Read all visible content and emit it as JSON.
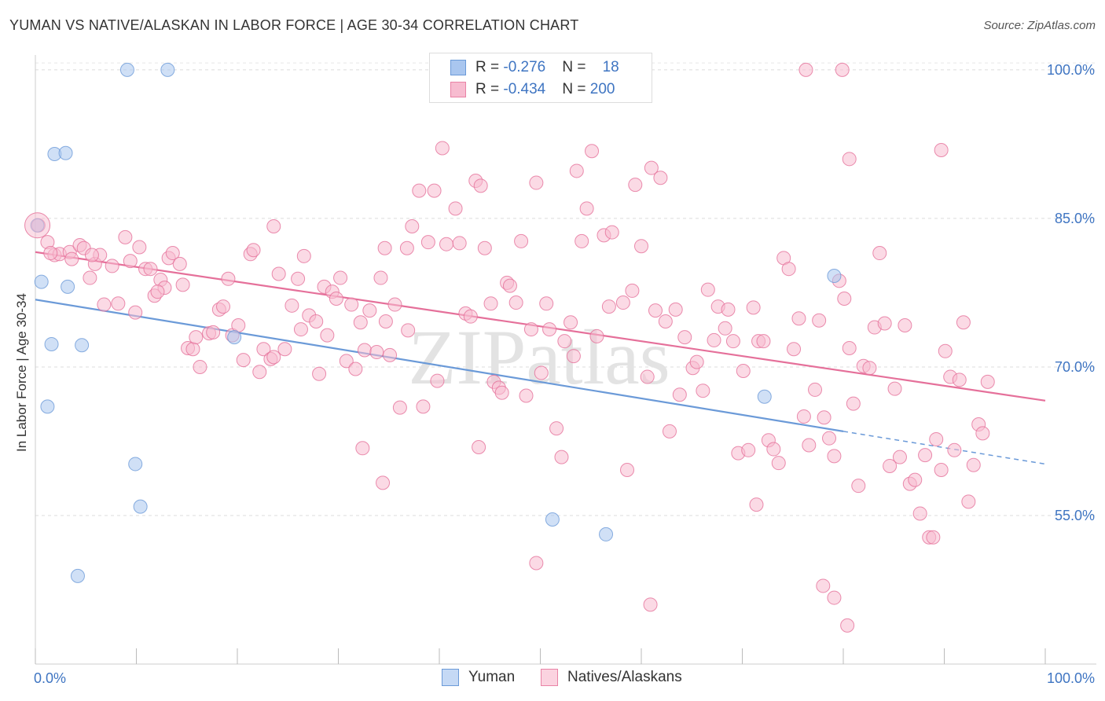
{
  "title": "YUMAN VS NATIVE/ALASKAN IN LABOR FORCE | AGE 30-34 CORRELATION CHART",
  "source": "Source: ZipAtlas.com",
  "watermark": "ZIPatlas",
  "legend": {
    "rows": [
      {
        "r_label": "R = ",
        "r_value": "-0.276",
        "n_label": "N = ",
        "n_value": "18",
        "color": "#a9c6ef",
        "border": "#6b9ad8"
      },
      {
        "r_label": "R = ",
        "r_value": "-0.434",
        "n_label": "N = ",
        "n_value": "200",
        "color": "#f7bcd0",
        "border": "#e983a6"
      }
    ]
  },
  "bottom_legend": [
    {
      "label": "Yuman",
      "color": "#c5d9f5",
      "border": "#6b9ad8"
    },
    {
      "label": "Natives/Alaskans",
      "color": "#fbd3e0",
      "border": "#e983a6"
    }
  ],
  "chart_data": {
    "type": "scatter",
    "title": "YUMAN VS NATIVE/ALASKAN IN LABOR FORCE | AGE 30-34 CORRELATION CHART",
    "xlabel": "",
    "ylabel": "In Labor Force | Age 30-34",
    "xlim": [
      0,
      100
    ],
    "ylim": [
      40,
      101.5
    ],
    "x_tick_labels": [
      "0.0%",
      "100.0%"
    ],
    "y_ticks": [
      55,
      70,
      85,
      100
    ],
    "y_tick_labels": [
      "55.0%",
      "70.0%",
      "85.0%",
      "100.0%"
    ],
    "grid": true,
    "series": [
      {
        "name": "Yuman",
        "color": "#6b9ad8",
        "fill": "#a9c6ef",
        "trend": {
          "x0": 0,
          "y0": 76.8,
          "x1": 80,
          "y1": 63.5,
          "dash_to": 100,
          "dash_y": 60.2
        },
        "points": [
          [
            9.1,
            100
          ],
          [
            13.1,
            100
          ],
          [
            1.9,
            91.5
          ],
          [
            3.0,
            91.6
          ],
          [
            0.2,
            84.3
          ],
          [
            0.6,
            78.6
          ],
          [
            3.2,
            78.1
          ],
          [
            1.6,
            72.3
          ],
          [
            4.6,
            72.2
          ],
          [
            1.2,
            66.0
          ],
          [
            9.9,
            60.2
          ],
          [
            10.4,
            55.9
          ],
          [
            4.2,
            48.9
          ],
          [
            19.7,
            73.0
          ],
          [
            51.2,
            54.6
          ],
          [
            56.5,
            53.1
          ],
          [
            72.2,
            67.0
          ],
          [
            79.1,
            79.2
          ]
        ]
      },
      {
        "name": "Natives/Alaskans",
        "color": "#e5709a",
        "fill": "#f7bcd0",
        "trend": {
          "x0": 0,
          "y0": 81.6,
          "x1": 100,
          "y1": 66.6
        },
        "points": [
          [
            0.3,
            84.3
          ],
          [
            1.2,
            82.6
          ],
          [
            1.9,
            81.3
          ],
          [
            2.4,
            81.4
          ],
          [
            3.4,
            81.6
          ],
          [
            3.6,
            80.9
          ],
          [
            4.4,
            82.3
          ],
          [
            4.8,
            82.0
          ],
          [
            5.4,
            79.0
          ],
          [
            5.9,
            80.4
          ],
          [
            6.4,
            81.3
          ],
          [
            6.8,
            76.3
          ],
          [
            7.6,
            80.2
          ],
          [
            8.2,
            76.4
          ],
          [
            8.9,
            83.1
          ],
          [
            9.4,
            80.7
          ],
          [
            9.9,
            75.5
          ],
          [
            10.3,
            82.1
          ],
          [
            10.9,
            79.9
          ],
          [
            11.4,
            79.9
          ],
          [
            11.8,
            77.2
          ],
          [
            12.4,
            78.8
          ],
          [
            12.8,
            78.0
          ],
          [
            13.2,
            81.0
          ],
          [
            13.6,
            81.5
          ],
          [
            14.3,
            80.4
          ],
          [
            14.6,
            78.3
          ],
          [
            15.1,
            71.9
          ],
          [
            15.6,
            71.8
          ],
          [
            16.3,
            70.0
          ],
          [
            17.2,
            73.4
          ],
          [
            17.6,
            73.5
          ],
          [
            18.2,
            75.8
          ],
          [
            18.6,
            76.1
          ],
          [
            19.1,
            78.9
          ],
          [
            19.5,
            73.2
          ],
          [
            20.1,
            74.2
          ],
          [
            20.6,
            70.7
          ],
          [
            21.3,
            81.4
          ],
          [
            21.6,
            81.8
          ],
          [
            22.2,
            69.5
          ],
          [
            22.6,
            71.8
          ],
          [
            23.3,
            70.8
          ],
          [
            23.6,
            84.2
          ],
          [
            24.1,
            79.4
          ],
          [
            24.7,
            71.8
          ],
          [
            25.4,
            76.2
          ],
          [
            26.0,
            78.9
          ],
          [
            26.3,
            73.8
          ],
          [
            26.6,
            81.2
          ],
          [
            27.1,
            75.2
          ],
          [
            27.8,
            74.6
          ],
          [
            28.1,
            69.3
          ],
          [
            28.6,
            78.1
          ],
          [
            28.9,
            73.2
          ],
          [
            29.4,
            77.6
          ],
          [
            29.8,
            76.9
          ],
          [
            30.2,
            79.0
          ],
          [
            30.8,
            70.6
          ],
          [
            31.3,
            76.3
          ],
          [
            31.7,
            69.8
          ],
          [
            32.2,
            74.5
          ],
          [
            32.6,
            71.7
          ],
          [
            33.1,
            75.7
          ],
          [
            33.8,
            71.5
          ],
          [
            34.2,
            79.0
          ],
          [
            34.7,
            74.6
          ],
          [
            35.1,
            71.2
          ],
          [
            35.6,
            76.3
          ],
          [
            36.1,
            65.9
          ],
          [
            36.8,
            82.0
          ],
          [
            37.3,
            84.2
          ],
          [
            38.0,
            87.8
          ],
          [
            38.4,
            66.0
          ],
          [
            38.9,
            82.6
          ],
          [
            39.5,
            87.8
          ],
          [
            39.8,
            68.6
          ],
          [
            40.3,
            92.1
          ],
          [
            40.7,
            82.4
          ],
          [
            41.6,
            86.0
          ],
          [
            42.0,
            82.5
          ],
          [
            42.6,
            75.4
          ],
          [
            43.1,
            75.1
          ],
          [
            43.6,
            88.8
          ],
          [
            44.1,
            88.3
          ],
          [
            44.5,
            82.0
          ],
          [
            45.1,
            76.4
          ],
          [
            45.4,
            68.5
          ],
          [
            45.9,
            67.9
          ],
          [
            46.2,
            67.4
          ],
          [
            46.7,
            78.5
          ],
          [
            47.0,
            78.2
          ],
          [
            47.6,
            76.5
          ],
          [
            48.1,
            82.7
          ],
          [
            48.6,
            67.1
          ],
          [
            49.1,
            73.8
          ],
          [
            49.6,
            88.6
          ],
          [
            50.1,
            69.4
          ],
          [
            50.6,
            76.4
          ],
          [
            50.9,
            73.8
          ],
          [
            51.6,
            63.8
          ],
          [
            52.1,
            60.9
          ],
          [
            52.4,
            72.6
          ],
          [
            53.0,
            74.5
          ],
          [
            53.3,
            71.1
          ],
          [
            53.6,
            89.8
          ],
          [
            54.1,
            82.7
          ],
          [
            54.6,
            86.0
          ],
          [
            55.1,
            91.8
          ],
          [
            55.6,
            73.1
          ],
          [
            56.3,
            83.3
          ],
          [
            56.8,
            76.1
          ],
          [
            57.1,
            83.6
          ],
          [
            58.2,
            76.5
          ],
          [
            58.6,
            59.6
          ],
          [
            59.1,
            77.7
          ],
          [
            59.4,
            88.4
          ],
          [
            60.0,
            82.2
          ],
          [
            60.6,
            69.0
          ],
          [
            61.0,
            90.1
          ],
          [
            61.4,
            75.7
          ],
          [
            61.9,
            89.1
          ],
          [
            62.4,
            74.6
          ],
          [
            62.8,
            63.5
          ],
          [
            63.4,
            75.8
          ],
          [
            63.8,
            67.2
          ],
          [
            64.3,
            73.0
          ],
          [
            65.1,
            69.9
          ],
          [
            65.5,
            70.5
          ],
          [
            66.1,
            67.6
          ],
          [
            66.6,
            77.8
          ],
          [
            67.2,
            72.7
          ],
          [
            67.6,
            76.1
          ],
          [
            68.3,
            73.9
          ],
          [
            68.6,
            75.8
          ],
          [
            69.1,
            72.6
          ],
          [
            69.6,
            61.3
          ],
          [
            70.1,
            69.6
          ],
          [
            70.6,
            61.6
          ],
          [
            71.1,
            76.0
          ],
          [
            71.6,
            72.6
          ],
          [
            72.1,
            72.6
          ],
          [
            72.6,
            62.6
          ],
          [
            73.1,
            61.7
          ],
          [
            73.6,
            60.3
          ],
          [
            74.1,
            81.0
          ],
          [
            74.6,
            79.9
          ],
          [
            75.1,
            71.8
          ],
          [
            75.6,
            74.9
          ],
          [
            76.1,
            65.0
          ],
          [
            76.6,
            62.1
          ],
          [
            77.2,
            67.7
          ],
          [
            77.6,
            74.7
          ],
          [
            78.1,
            64.9
          ],
          [
            78.6,
            62.8
          ],
          [
            79.1,
            61.0
          ],
          [
            79.6,
            78.7
          ],
          [
            80.1,
            76.9
          ],
          [
            80.6,
            71.9
          ],
          [
            81.0,
            66.3
          ],
          [
            81.5,
            58.0
          ],
          [
            82.0,
            70.1
          ],
          [
            82.6,
            69.9
          ],
          [
            83.1,
            74.0
          ],
          [
            83.6,
            81.5
          ],
          [
            84.1,
            74.4
          ],
          [
            84.6,
            60.0
          ],
          [
            85.1,
            67.8
          ],
          [
            85.6,
            60.9
          ],
          [
            86.1,
            74.2
          ],
          [
            86.6,
            58.2
          ],
          [
            87.1,
            58.6
          ],
          [
            87.6,
            55.2
          ],
          [
            88.1,
            61.1
          ],
          [
            88.5,
            52.8
          ],
          [
            88.9,
            52.8
          ],
          [
            89.2,
            62.7
          ],
          [
            89.7,
            59.6
          ],
          [
            90.1,
            71.6
          ],
          [
            90.6,
            69.0
          ],
          [
            91.0,
            61.6
          ],
          [
            91.5,
            68.7
          ],
          [
            91.9,
            74.5
          ],
          [
            92.4,
            56.4
          ],
          [
            92.9,
            60.1
          ],
          [
            93.4,
            64.2
          ],
          [
            93.8,
            63.3
          ],
          [
            94.3,
            68.5
          ],
          [
            1.5,
            81.5
          ],
          [
            5.6,
            81.3
          ],
          [
            12.1,
            77.6
          ],
          [
            15.9,
            73.0
          ],
          [
            23.6,
            71.0
          ],
          [
            34.6,
            82.0
          ],
          [
            36.9,
            73.7
          ],
          [
            43.9,
            61.9
          ],
          [
            49.6,
            50.2
          ],
          [
            60.9,
            46.0
          ],
          [
            71.4,
            56.1
          ],
          [
            78.0,
            47.9
          ],
          [
            79.1,
            46.7
          ],
          [
            80.4,
            43.9
          ],
          [
            76.3,
            100
          ],
          [
            79.9,
            100
          ],
          [
            89.7,
            91.9
          ],
          [
            80.6,
            91.0
          ],
          [
            34.4,
            58.3
          ],
          [
            32.4,
            61.8
          ]
        ]
      }
    ]
  }
}
